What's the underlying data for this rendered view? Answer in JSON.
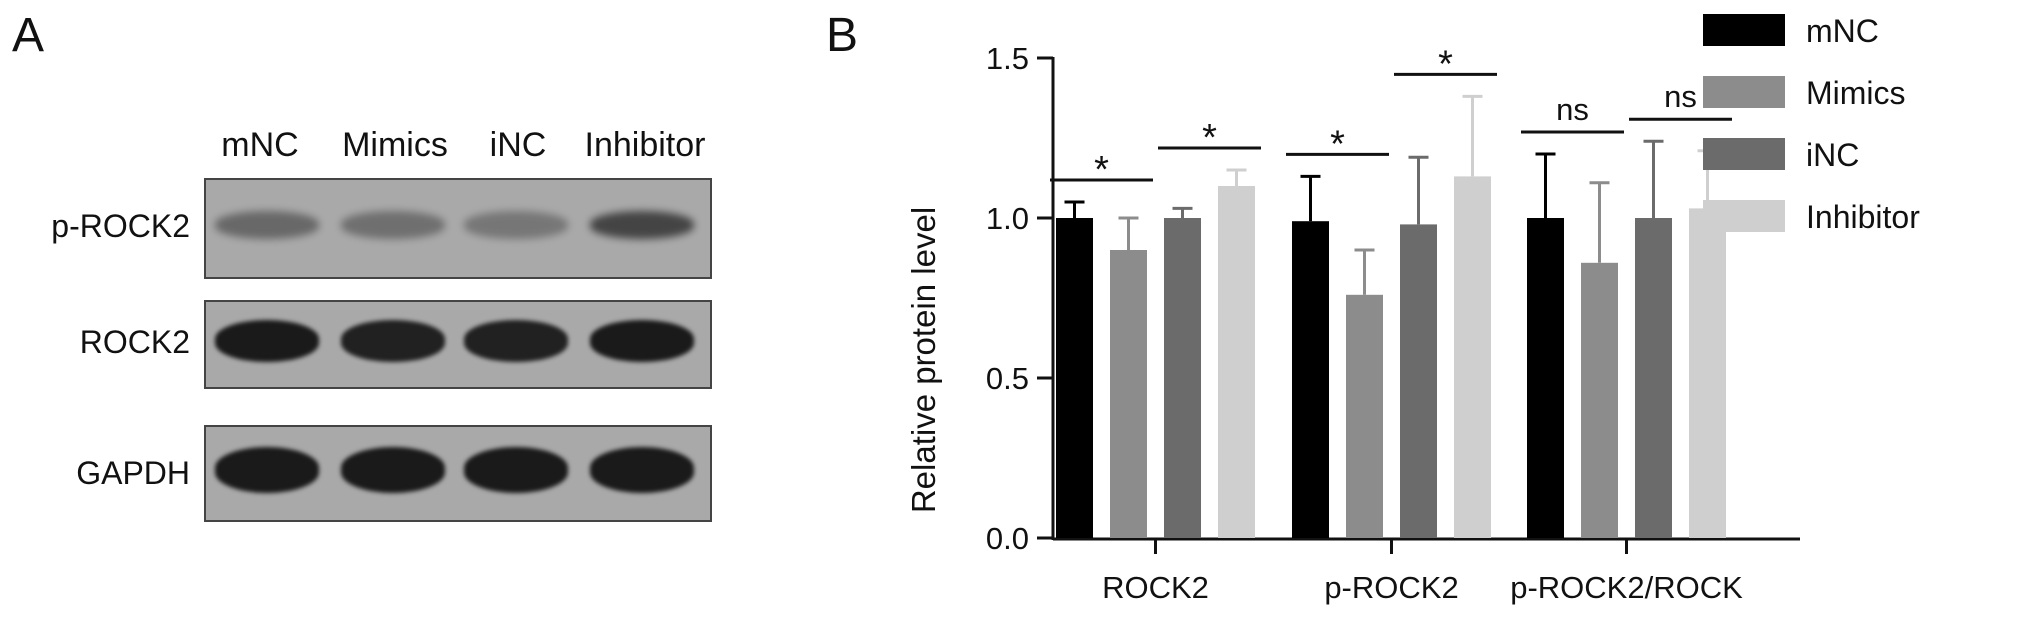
{
  "panels": {
    "A": "A",
    "B": "B"
  },
  "blot": {
    "lane_labels": [
      "mNC",
      "Mimics",
      "iNC",
      "Inhibitor"
    ],
    "rows": [
      {
        "label": "p-ROCK2",
        "band_intensity": [
          0.45,
          0.4,
          0.35,
          0.7
        ]
      },
      {
        "label": "ROCK2",
        "band_intensity": [
          1.0,
          0.95,
          0.95,
          1.0
        ]
      },
      {
        "label": "GAPDH",
        "band_intensity": [
          1.0,
          1.0,
          1.0,
          1.0
        ]
      }
    ],
    "background_color": "#a9a9a9",
    "band_color": "#1a1a1a"
  },
  "chart_data": {
    "type": "bar",
    "title": "",
    "xlabel": "",
    "ylabel": "Relative protein level",
    "ylim": [
      0,
      1.5
    ],
    "yticks": [
      "0.0",
      "0.5",
      "1.0",
      "1.5"
    ],
    "categories": [
      "ROCK2",
      "p-ROCK2",
      "p-ROCK2/ROCK"
    ],
    "series": [
      {
        "name": "mNC",
        "color": "#000000",
        "values": [
          1.0,
          0.99,
          1.0
        ],
        "errors": [
          0.05,
          0.14,
          0.2
        ]
      },
      {
        "name": "Mimics",
        "color": "#8c8c8c",
        "values": [
          0.9,
          0.76,
          0.86
        ],
        "errors": [
          0.1,
          0.14,
          0.25
        ]
      },
      {
        "name": "iNC",
        "color": "#6b6b6b",
        "values": [
          1.0,
          0.98,
          1.0
        ],
        "errors": [
          0.03,
          0.21,
          0.24
        ]
      },
      {
        "name": "Inhibitor",
        "color": "#cfcfcf",
        "values": [
          1.1,
          1.13,
          1.03
        ],
        "errors": [
          0.05,
          0.25,
          0.18
        ]
      }
    ],
    "significance": [
      {
        "category": 0,
        "pair": [
          0,
          1
        ],
        "label": "*"
      },
      {
        "category": 0,
        "pair": [
          2,
          3
        ],
        "label": "*"
      },
      {
        "category": 1,
        "pair": [
          0,
          1
        ],
        "label": "*"
      },
      {
        "category": 1,
        "pair": [
          2,
          3
        ],
        "label": "*"
      },
      {
        "category": 2,
        "pair": [
          0,
          1
        ],
        "label": "ns"
      },
      {
        "category": 2,
        "pair": [
          2,
          3
        ],
        "label": "ns"
      }
    ],
    "legend_position": "right"
  }
}
